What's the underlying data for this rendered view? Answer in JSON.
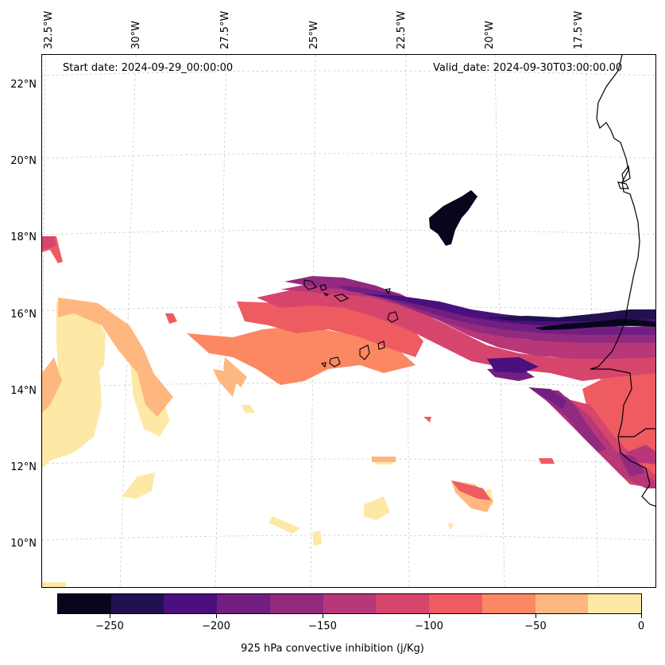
{
  "header": {
    "start_date": "Start date: 2024-09-29_00:00:00",
    "valid_date": "Valid_date: 2024-09-30T03:00:00.00"
  },
  "longitude_labels": [
    "32.5°W",
    "30°W",
    "27.5°W",
    "25°W",
    "22.5°W",
    "20°W",
    "17.5°W"
  ],
  "latitude_labels": [
    "22°N",
    "20°N",
    "18°N",
    "16°N",
    "14°N",
    "12°N",
    "10°N"
  ],
  "colorbar": {
    "title": "925 hPa convective inhibition (j/Kg)",
    "tick_labels": [
      "−250",
      "−200",
      "−150",
      "−100",
      "−50",
      "0"
    ],
    "colors": [
      "#07061c",
      "#221150",
      "#4b0f7e",
      "#721f81",
      "#922b80",
      "#b73779",
      "#d6456c",
      "#ee5b60",
      "#fb8862",
      "#feb77f",
      "#fde8a6"
    ]
  },
  "map": {
    "coastline_color": "#000000",
    "gridline_color": "#cccccc"
  }
}
